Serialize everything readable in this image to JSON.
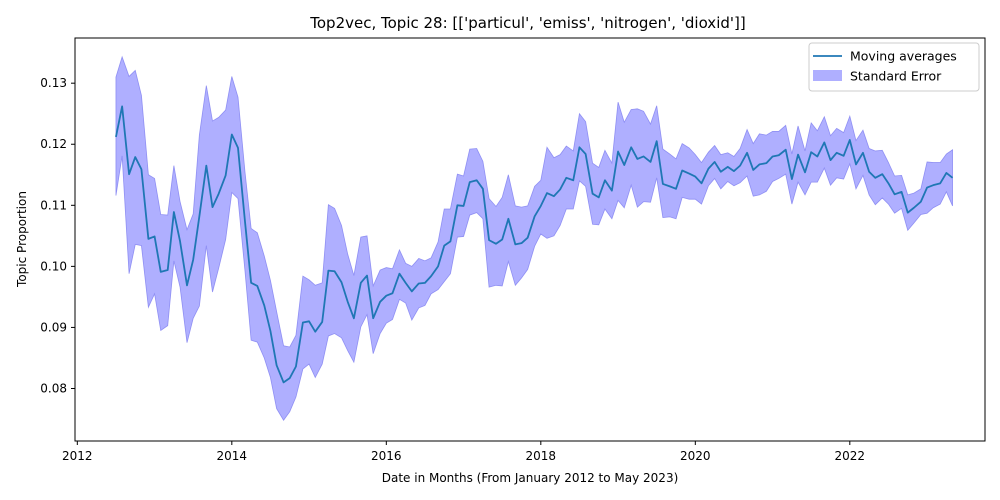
{
  "chart_data": {
    "type": "line",
    "title": "Top2vec, Topic 28: [['particul', 'emiss', 'nitrogen', 'dioxid']]",
    "xlabel": "Date in Months (From January 2012 to May 2023)",
    "ylabel": "Topic Proportion",
    "xlim": [
      2011.97,
      2023.75
    ],
    "ylim": [
      0.0714,
      0.1374
    ],
    "x_ticks": [
      2012,
      2014,
      2016,
      2018,
      2020,
      2022
    ],
    "y_ticks": [
      0.08,
      0.09,
      0.1,
      0.11,
      0.12,
      0.13
    ],
    "y_tick_labels": [
      "0.08",
      "0.09",
      "0.10",
      "0.11",
      "0.12",
      "0.13"
    ],
    "grid": false,
    "legend_position": "top-right",
    "legend": [
      "Moving averages",
      "Standard Error"
    ],
    "colors": {
      "line": "#1f77b4",
      "band": "#6e6eff",
      "band_edge": "#8080f0"
    },
    "series": [
      {
        "name": "Moving averages",
        "x": [
          2012.5,
          2012.58,
          2012.67,
          2012.75,
          2012.83,
          2012.92,
          2013.0,
          2013.08,
          2013.17,
          2013.25,
          2013.33,
          2013.42,
          2013.5,
          2013.58,
          2013.67,
          2013.75,
          2013.83,
          2013.92,
          2014.0,
          2014.08,
          2014.17,
          2014.25,
          2014.33,
          2014.42,
          2014.5,
          2014.58,
          2014.67,
          2014.75,
          2014.83,
          2014.92,
          2015.0,
          2015.08,
          2015.17,
          2015.25,
          2015.33,
          2015.42,
          2015.5,
          2015.58,
          2015.67,
          2015.75,
          2015.83,
          2015.92,
          2016.0,
          2016.08,
          2016.17,
          2016.25,
          2016.33,
          2016.42,
          2016.5,
          2016.58,
          2016.67,
          2016.75,
          2016.83,
          2016.92,
          2017.0,
          2017.08,
          2017.17,
          2017.25,
          2017.33,
          2017.42,
          2017.5,
          2017.58,
          2017.67,
          2017.75,
          2017.83,
          2017.92,
          2018.0,
          2018.08,
          2018.17,
          2018.25,
          2018.33,
          2018.42,
          2018.5,
          2018.58,
          2018.67,
          2018.75,
          2018.83,
          2018.92,
          2019.0,
          2019.08,
          2019.17,
          2019.25,
          2019.33,
          2019.42,
          2019.5,
          2019.58,
          2019.67,
          2019.75,
          2019.83,
          2019.92,
          2020.0,
          2020.08,
          2020.17,
          2020.25,
          2020.33,
          2020.42,
          2020.5,
          2020.58,
          2020.67,
          2020.75,
          2020.83,
          2020.92,
          2021.0,
          2021.08,
          2021.17,
          2021.25,
          2021.33,
          2021.42,
          2021.5,
          2021.58,
          2021.67,
          2021.75,
          2021.83,
          2021.92,
          2022.0,
          2022.08,
          2022.17,
          2022.25,
          2022.33,
          2022.42,
          2022.5,
          2022.58,
          2022.67,
          2022.75,
          2022.83,
          2022.92,
          2023.0,
          2023.08,
          2023.17,
          2023.25,
          2023.33
        ],
        "values": [
          0.1212,
          0.1262,
          0.1151,
          0.1179,
          0.1159,
          0.1045,
          0.1049,
          0.0991,
          0.0994,
          0.1089,
          0.1041,
          0.0969,
          0.1011,
          0.1082,
          0.1165,
          0.1097,
          0.1119,
          0.1149,
          0.1216,
          0.1194,
          0.1074,
          0.0973,
          0.0968,
          0.0936,
          0.0894,
          0.0838,
          0.081,
          0.0817,
          0.0836,
          0.0908,
          0.091,
          0.0893,
          0.0909,
          0.0993,
          0.0992,
          0.0974,
          0.0942,
          0.0915,
          0.0973,
          0.0985,
          0.0915,
          0.0942,
          0.0952,
          0.0956,
          0.0988,
          0.0973,
          0.0959,
          0.0972,
          0.0973,
          0.0984,
          0.1,
          0.1034,
          0.1041,
          0.11,
          0.1099,
          0.1138,
          0.1141,
          0.1127,
          0.1043,
          0.1037,
          0.1044,
          0.1078,
          0.1036,
          0.1038,
          0.1047,
          0.1082,
          0.1099,
          0.112,
          0.1115,
          0.1126,
          0.1145,
          0.1141,
          0.1195,
          0.1184,
          0.1119,
          0.1113,
          0.1141,
          0.1124,
          0.1188,
          0.1166,
          0.1195,
          0.1176,
          0.118,
          0.1171,
          0.1205,
          0.1135,
          0.1131,
          0.1127,
          0.1157,
          0.1152,
          0.1147,
          0.1136,
          0.116,
          0.1171,
          0.1155,
          0.1163,
          0.1156,
          0.1165,
          0.1186,
          0.1158,
          0.1167,
          0.1169,
          0.118,
          0.1182,
          0.1191,
          0.1143,
          0.1183,
          0.1154,
          0.1187,
          0.118,
          0.1203,
          0.1174,
          0.1186,
          0.1181,
          0.1207,
          0.1167,
          0.1186,
          0.1155,
          0.1145,
          0.1151,
          0.1136,
          0.1118,
          0.1122,
          0.1088,
          0.1096,
          0.1106,
          0.1129,
          0.1133,
          0.1136,
          0.1153,
          0.1145
        ]
      }
    ],
    "band": {
      "name": "Standard Error",
      "upper": [
        0.131,
        0.1343,
        0.1311,
        0.1321,
        0.128,
        0.115,
        0.1144,
        0.1085,
        0.1084,
        0.1165,
        0.1106,
        0.106,
        0.1086,
        0.1215,
        0.1296,
        0.1238,
        0.1244,
        0.1256,
        0.1311,
        0.1277,
        0.1155,
        0.1062,
        0.1055,
        0.1017,
        0.0977,
        0.0926,
        0.087,
        0.0868,
        0.0887,
        0.0984,
        0.0978,
        0.0969,
        0.0973,
        0.1101,
        0.1095,
        0.1067,
        0.102,
        0.0985,
        0.1048,
        0.105,
        0.0968,
        0.0994,
        0.0998,
        0.0996,
        0.1027,
        0.1005,
        0.1,
        0.1013,
        0.1009,
        0.1014,
        0.104,
        0.1094,
        0.1094,
        0.1151,
        0.1148,
        0.1192,
        0.1193,
        0.1172,
        0.1111,
        0.1098,
        0.1113,
        0.115,
        0.1099,
        0.1097,
        0.1099,
        0.1131,
        0.1141,
        0.1195,
        0.1178,
        0.1183,
        0.1197,
        0.1189,
        0.125,
        0.1237,
        0.1169,
        0.1162,
        0.119,
        0.1169,
        0.1269,
        0.1236,
        0.1257,
        0.1258,
        0.1254,
        0.1233,
        0.1263,
        0.1192,
        0.1184,
        0.1176,
        0.1201,
        0.1194,
        0.1183,
        0.117,
        0.1187,
        0.1198,
        0.1183,
        0.1186,
        0.118,
        0.1193,
        0.1224,
        0.1201,
        0.1217,
        0.1215,
        0.1221,
        0.1221,
        0.1231,
        0.1184,
        0.123,
        0.1189,
        0.1235,
        0.1222,
        0.1245,
        0.1214,
        0.1226,
        0.1219,
        0.1246,
        0.1206,
        0.1223,
        0.1193,
        0.1189,
        0.119,
        0.117,
        0.1148,
        0.1149,
        0.1117,
        0.112,
        0.1127,
        0.1171,
        0.117,
        0.117,
        0.1184,
        0.1191
      ],
      "lower": [
        0.1116,
        0.1181,
        0.0988,
        0.1036,
        0.1034,
        0.0933,
        0.0955,
        0.0895,
        0.0903,
        0.1009,
        0.0966,
        0.0875,
        0.0915,
        0.0935,
        0.1034,
        0.0958,
        0.0997,
        0.1044,
        0.1121,
        0.1111,
        0.0993,
        0.0879,
        0.0876,
        0.085,
        0.0818,
        0.0767,
        0.0748,
        0.0762,
        0.0786,
        0.0832,
        0.084,
        0.0818,
        0.084,
        0.0886,
        0.089,
        0.0883,
        0.0862,
        0.0843,
        0.0901,
        0.0921,
        0.0857,
        0.089,
        0.0907,
        0.0913,
        0.0946,
        0.094,
        0.0912,
        0.0932,
        0.0936,
        0.0955,
        0.0962,
        0.0975,
        0.0988,
        0.1048,
        0.1049,
        0.1084,
        0.1088,
        0.1078,
        0.0966,
        0.0969,
        0.0968,
        0.1008,
        0.0969,
        0.0981,
        0.0995,
        0.1033,
        0.1053,
        0.1046,
        0.105,
        0.1067,
        0.1094,
        0.1094,
        0.114,
        0.1131,
        0.1069,
        0.1068,
        0.1094,
        0.1078,
        0.1108,
        0.1096,
        0.1133,
        0.1097,
        0.1106,
        0.1105,
        0.1145,
        0.108,
        0.1081,
        0.1078,
        0.1113,
        0.111,
        0.111,
        0.1102,
        0.1132,
        0.1144,
        0.1127,
        0.1139,
        0.1132,
        0.1137,
        0.1148,
        0.1115,
        0.1117,
        0.1123,
        0.1139,
        0.1144,
        0.1151,
        0.1102,
        0.1138,
        0.1117,
        0.1138,
        0.1138,
        0.1161,
        0.1133,
        0.1145,
        0.1143,
        0.1168,
        0.1127,
        0.1149,
        0.1117,
        0.1101,
        0.1112,
        0.1102,
        0.1087,
        0.1095,
        0.1059,
        0.1071,
        0.1085,
        0.1087,
        0.1096,
        0.1102,
        0.1122,
        0.1099
      ]
    }
  }
}
